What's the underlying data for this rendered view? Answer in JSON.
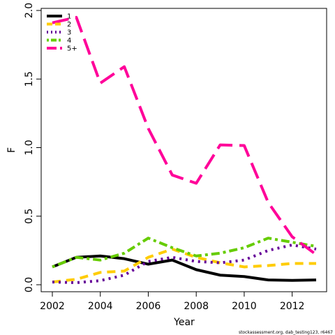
{
  "chart_data": {
    "type": "line",
    "title": "",
    "xlabel": "Year",
    "ylabel": "F",
    "xlim": [
      2002,
      2013
    ],
    "ylim": [
      0,
      2.0
    ],
    "x_ticks": [
      "2002",
      "2004",
      "2006",
      "2008",
      "2010",
      "2012"
    ],
    "y_ticks": [
      "0.0",
      "0.5",
      "1.0",
      "1.5",
      "2.0"
    ],
    "grid": false,
    "legend_position": "top-left",
    "x": [
      2002,
      2003,
      2004,
      2005,
      2006,
      2007,
      2008,
      2009,
      2010,
      2011,
      2012,
      2013
    ],
    "series": [
      {
        "name": "1",
        "color": "#000000",
        "dash": "solid",
        "values": [
          0.13,
          0.2,
          0.21,
          0.19,
          0.15,
          0.18,
          0.11,
          0.07,
          0.06,
          0.035,
          0.032,
          0.035
        ]
      },
      {
        "name": "2",
        "color": "#FFCC00",
        "dash": "dash",
        "values": [
          0.02,
          0.04,
          0.09,
          0.1,
          0.2,
          0.26,
          0.2,
          0.16,
          0.13,
          0.14,
          0.155,
          0.155
        ]
      },
      {
        "name": "3",
        "color": "#660099",
        "dash": "dot",
        "values": [
          0.02,
          0.015,
          0.03,
          0.07,
          0.17,
          0.2,
          0.17,
          0.16,
          0.18,
          0.25,
          0.29,
          0.26
        ]
      },
      {
        "name": "4",
        "color": "#66CC00",
        "dash": "dotdash",
        "values": [
          0.13,
          0.2,
          0.18,
          0.23,
          0.34,
          0.27,
          0.21,
          0.23,
          0.27,
          0.34,
          0.31,
          0.28
        ]
      },
      {
        "name": "5+",
        "color": "#FF0099",
        "dash": "longdash",
        "values": [
          1.91,
          1.95,
          1.47,
          1.59,
          1.14,
          0.8,
          0.74,
          1.02,
          1.015,
          0.6,
          0.35,
          0.22
        ]
      }
    ]
  },
  "footnote": "stockassessment.org, dab_testing123, r6467"
}
